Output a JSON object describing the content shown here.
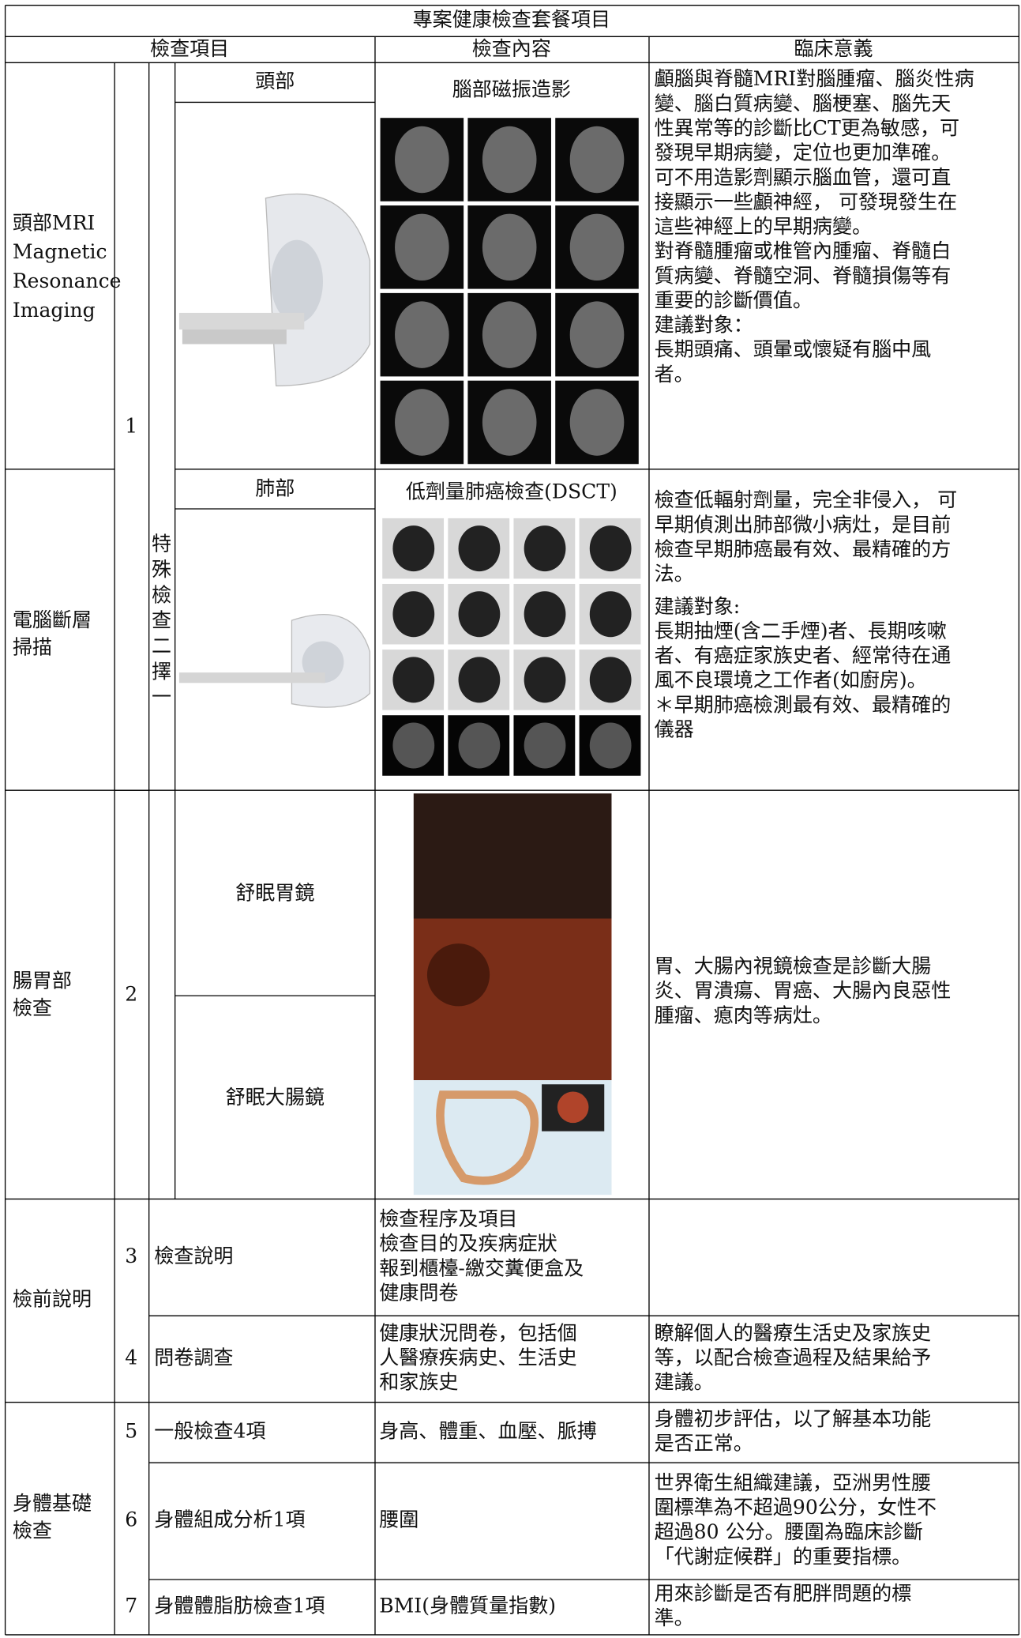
{
  "table": {
    "title": "專案健康檢查套餐項目",
    "header": [
      "檢查項目",
      "檢查內容",
      "臨床意義"
    ],
    "special": {
      "number": "1",
      "label": [
        "特",
        "殊",
        "檢",
        "查",
        "二",
        "擇",
        "一"
      ]
    },
    "mri": {
      "category": [
        "頭部MRI",
        "Magnetic",
        "Resonance",
        "Imaging"
      ],
      "part": "頭部",
      "content": "腦部磁振造影",
      "significance": [
        "顱腦與脊髓MRI對腦腫瘤、腦炎性病",
        "變、腦白質病變、腦梗塞、腦先天",
        "性異常等的診斷比CT更為敏感，可",
        "發現早期病變，定位也更加準確。",
        "可不用造影劑顯示腦血管，還可直",
        "接顯示一些顱神經， 可發現發生在",
        "這些神經上的早期病變。",
        "對脊髓腫瘤或椎管內腫瘤、脊髓白",
        "質病變、脊髓空洞、脊髓損傷等有",
        "重要的診斷價值。"
      ],
      "target_label": "建議對象：",
      "targets": [
        "長期頭痛、頭暈或懷疑有腦中風",
        "者。"
      ]
    },
    "ct": {
      "category": [
        "電腦斷層",
        "掃描"
      ],
      "part": "肺部",
      "content": "低劑量肺癌檢查(DSCT)",
      "significance": [
        "檢查低輻射劑量，完全非侵入， 可",
        "早期偵測出肺部微小病灶，是目前",
        "檢查早期肺癌最有效、最精確的方",
        "法。"
      ],
      "target_label": "建議對象:",
      "targets": [
        "長期抽煙(含二手煙)者、長期咳嗽",
        "者、有癌症家族史者、經常待在通",
        "風不良環境之工作者(如廚房)。"
      ],
      "note": [
        "＊早期肺癌檢測最有效、最精確的",
        "儀器"
      ]
    },
    "gi": {
      "category": [
        "腸胃部",
        "檢查"
      ],
      "number": "2",
      "parts": [
        "舒眠胃鏡",
        "舒眠大腸鏡"
      ],
      "significance": [
        "胃、大腸內視鏡檢查是診斷大腸",
        "炎、胃潰瘍、胃癌、大腸內良惡性",
        "腫瘤、瘜肉等病灶。"
      ]
    },
    "groups": [
      {
        "category": [
          "檢前說明"
        ],
        "items": [
          {
            "number": "3",
            "item": "檢查說明",
            "content": [
              "檢查程序及項目",
              "檢查目的及疾病症狀",
              "報到櫃檯-繳交糞便盒及",
              "健康問卷"
            ],
            "significance": []
          },
          {
            "number": "4",
            "item": "問卷調查",
            "content": [
              "健康狀況問卷，包括個",
              "人醫療疾病史、生活史",
              "和家族史"
            ],
            "significance": [
              "瞭解個人的醫療生活史及家族史",
              "等，以配合檢查過程及結果給予",
              "建議。"
            ]
          }
        ]
      },
      {
        "category": [
          "身體基礎",
          "檢查"
        ],
        "items": [
          {
            "number": "5",
            "item": "一般檢查4項",
            "content": [
              "身高、體重、血壓、脈搏"
            ],
            "significance": [
              "身體初步評估，以了解基本功能",
              "是否正常。"
            ]
          },
          {
            "number": "6",
            "item": "身體組成分析1項",
            "content": [
              "腰圍"
            ],
            "significance": [
              "世界衛生組織建議，亞洲男性腰",
              "圍標準為不超過90公分，女性不",
              "超過80 公分。腰圍為臨床診斷",
              "「代謝症候群」的重要指標。"
            ]
          },
          {
            "number": "7",
            "item": "身體體脂肪檢查1項",
            "content": [
              "BMI(身體質量指數)"
            ],
            "significance": [
              "用來診斷是否有肥胖問題的標",
              "準。"
            ]
          }
        ]
      }
    ]
  }
}
